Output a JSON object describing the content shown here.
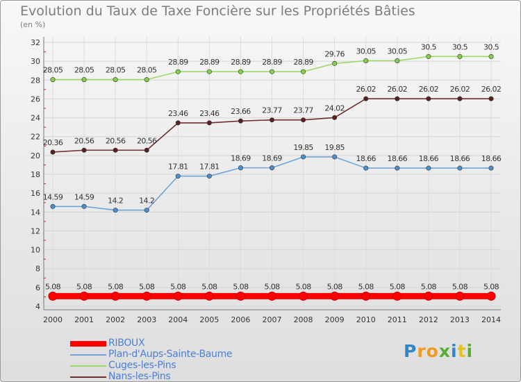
{
  "chart_data": {
    "type": "line",
    "title": "Evolution du Taux de Taxe Foncière sur les Propriétés Bâties",
    "subtitle": "(en %)",
    "xlabel": "",
    "ylabel": "",
    "ylim": [
      4,
      32
    ],
    "ytick_step": 2,
    "grid": true,
    "categories": [
      "2000",
      "2001",
      "2002",
      "2003",
      "2004",
      "2005",
      "2006",
      "2007",
      "2008",
      "2009",
      "2010",
      "2011",
      "2012",
      "2013",
      "2014"
    ],
    "series": [
      {
        "name": "RIBOUX",
        "color": "#ff0000",
        "values": [
          5.08,
          5.08,
          5.08,
          5.08,
          5.08,
          5.08,
          5.08,
          5.08,
          5.08,
          5.08,
          5.08,
          5.08,
          5.08,
          5.08,
          5.08
        ],
        "labels": [
          "5.08",
          "5.08",
          "5.08",
          "5.08",
          "5.08",
          "5.08",
          "5.08",
          "5.08",
          "5.08",
          "5.08",
          "5.08",
          "5.08",
          "5.08",
          "5.08",
          "5.08"
        ]
      },
      {
        "name": "Plan-d'Aups-Sainte-Baume",
        "color": "#6fa3d8",
        "values": [
          14.59,
          14.59,
          14.2,
          14.2,
          17.81,
          17.81,
          18.69,
          18.69,
          19.85,
          19.85,
          18.66,
          18.66,
          18.66,
          18.66,
          18.66
        ],
        "labels": [
          "14.59",
          "14.59",
          "14.2",
          "14.2",
          "17.81",
          "17.81",
          "18.69",
          "18.69",
          "19.85",
          "19.85",
          "18.66",
          "18.66",
          "18.66",
          "18.66",
          "18.66"
        ]
      },
      {
        "name": "Cuges-les-Pins",
        "color": "#9ed868",
        "values": [
          28.05,
          28.05,
          28.05,
          28.05,
          28.89,
          28.89,
          28.89,
          28.89,
          28.89,
          29.76,
          30.05,
          30.05,
          30.5,
          30.5,
          30.5
        ],
        "labels": [
          "28.05",
          "28.05",
          "28.05",
          "28.05",
          "28.89",
          "28.89",
          "28.89",
          "28.89",
          "28.89",
          "29.76",
          "30.05",
          "30.05",
          "30.5",
          "30.5",
          "30.5"
        ]
      },
      {
        "name": "Nans-les-Pins",
        "color": "#6e2f2f",
        "values": [
          20.36,
          20.56,
          20.56,
          20.56,
          23.46,
          23.46,
          23.66,
          23.77,
          23.77,
          24.02,
          26.02,
          26.02,
          26.02,
          26.02,
          26.02
        ],
        "labels": [
          "20.36",
          "20.56",
          "20.56",
          "20.56",
          "23.46",
          "23.46",
          "23.66",
          "23.77",
          "23.77",
          "24.02",
          "26.02",
          "26.02",
          "26.02",
          "26.02",
          "26.02"
        ]
      }
    ],
    "legend": {
      "position": "bottom-left",
      "items": [
        "RIBOUX",
        "Plan-d'Aups-Sainte-Baume",
        "Cuges-les-Pins",
        "Nans-les-Pins"
      ]
    }
  },
  "logo": {
    "text": "Proxiti",
    "letters": [
      {
        "ch": "P",
        "color": "#2f86c9"
      },
      {
        "ch": "r",
        "color": "#f29a1f"
      },
      {
        "ch": "o",
        "color": "#f29a1f"
      },
      {
        "ch": "x",
        "color": "#5aac2f"
      },
      {
        "ch": "i",
        "color": "#2f86c9"
      },
      {
        "ch": "t",
        "color": "#e5c21a"
      },
      {
        "ch": "i",
        "color": "#5aac2f"
      }
    ]
  }
}
